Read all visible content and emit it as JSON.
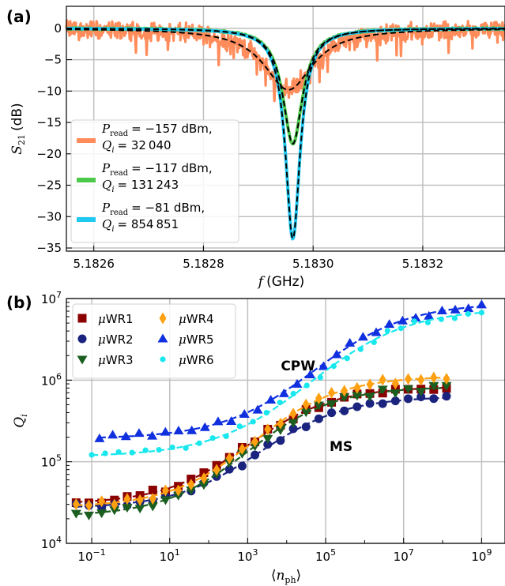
{
  "chart_data": [
    {
      "type": "line",
      "panel_label": "(a)",
      "xlabel_symbol": "f",
      "xlabel_unit": "(GHz)",
      "ylabel_symbol": "S",
      "ylabel_sub": "21",
      "ylabel_unit": "(dB)",
      "xlim": [
        5.18255,
        5.18335
      ],
      "ylim": [
        -35.5,
        3.5
      ],
      "grid": true,
      "x_ticks": [
        5.1826,
        5.1828,
        5.183,
        5.1832
      ],
      "x_tick_labels": [
        "5.1826",
        "5.1828",
        "5.1830",
        "5.1832"
      ],
      "y_ticks": [
        0,
        -5,
        -10,
        -15,
        -20,
        -25,
        -30,
        -35
      ],
      "y_tick_labels": [
        "0",
        "−5",
        "−10",
        "−15",
        "−20",
        "−25",
        "−30",
        "−35"
      ],
      "legend_position": "bottom-left",
      "series": [
        {
          "p_label": "P",
          "p_sub": "read",
          "p_value": "= −157 dBm,",
          "q_label": "Q",
          "q_sub": "i",
          "q_value": "= 32 040",
          "color": "#ff8c5a",
          "f0": 5.182955,
          "depth_db": 9.8,
          "fwhm_ghz": 0.000108,
          "noise_db": 1.2
        },
        {
          "p_label": "P",
          "p_sub": "read",
          "p_value": "= −117 dBm,",
          "q_label": "Q",
          "q_sub": "i",
          "q_value": "= 131 243",
          "color": "#4cc84a",
          "f0": 5.182963,
          "depth_db": 18.4,
          "fwhm_ghz": 4.36e-05,
          "noise_db": 0.12
        },
        {
          "p_label": "P",
          "p_sub": "read",
          "p_value": "= −81 dBm,",
          "q_label": "Q",
          "q_sub": "i",
          "q_value": "= 854 851",
          "color": "#1ec8f0",
          "f0": 5.182963,
          "depth_db": 33.5,
          "fwhm_ghz": 3.26e-05,
          "noise_db": 0.05
        }
      ],
      "fit_style": "black dashed"
    },
    {
      "type": "scatter",
      "panel_label": "(b)",
      "xlabel_symbol": "n",
      "xlabel_sub": "ph",
      "ylabel_symbol": "Q",
      "ylabel_sub": "i",
      "x_scale": "log",
      "y_scale": "log",
      "xlim_log10": [
        -1.65,
        9.6
      ],
      "ylim_log10": [
        4,
        7
      ],
      "grid": true,
      "x_ticks_log10": [
        -1,
        1,
        3,
        5,
        7,
        9
      ],
      "y_ticks_log10": [
        4,
        5,
        6,
        7
      ],
      "tick_base": "10",
      "legend_position": "top-left",
      "annotations": [
        {
          "text": "CPW",
          "x_log10": 3.85,
          "y_log10": 6.12
        },
        {
          "text": "MS",
          "x_log10": 5.1,
          "y_log10": 5.13
        }
      ],
      "series": [
        {
          "name_prefix": "μ",
          "name": "WR1",
          "marker": "square",
          "color": "#8b0000",
          "q_low_log10": 4.48,
          "q_high_log10": 5.92,
          "x_center_log10": 3.0,
          "width": 1.1,
          "x_start_log10": -1.4,
          "x_end_log10": 8.1
        },
        {
          "name_prefix": "μ",
          "name": "WR2",
          "marker": "circle",
          "color": "#1a237e",
          "q_low_log10": 4.43,
          "q_high_log10": 5.8,
          "x_center_log10": 3.3,
          "width": 1.1,
          "x_start_log10": -1.4,
          "x_end_log10": 8.1
        },
        {
          "name_prefix": "μ",
          "name": "WR3",
          "marker": "triangle-down",
          "color": "#1b5e20",
          "q_low_log10": 4.33,
          "q_high_log10": 5.92,
          "x_center_log10": 3.0,
          "width": 1.1,
          "x_start_log10": -1.4,
          "x_end_log10": 8.1
        },
        {
          "name_prefix": "μ",
          "name": "WR4",
          "marker": "diamond",
          "color": "#ffa010",
          "q_low_log10": 4.44,
          "q_high_log10": 6.05,
          "x_center_log10": 3.15,
          "width": 1.1,
          "x_start_log10": -1.4,
          "x_end_log10": 8.1
        },
        {
          "name_prefix": "μ",
          "name": "WR5",
          "marker": "triangle-up",
          "color": "#1030e0",
          "q_low_log10": 5.28,
          "q_high_log10": 6.95,
          "x_center_log10": 4.7,
          "width": 1.2,
          "x_start_log10": -0.8,
          "x_end_log10": 9.0
        },
        {
          "name_prefix": "μ",
          "name": "WR6",
          "marker": "circle-small",
          "color": "#18e8ee",
          "q_low_log10": 5.06,
          "q_high_log10": 6.88,
          "x_center_log10": 4.6,
          "width": 1.25,
          "x_start_log10": -1.0,
          "x_end_log10": 9.0
        }
      ]
    }
  ]
}
